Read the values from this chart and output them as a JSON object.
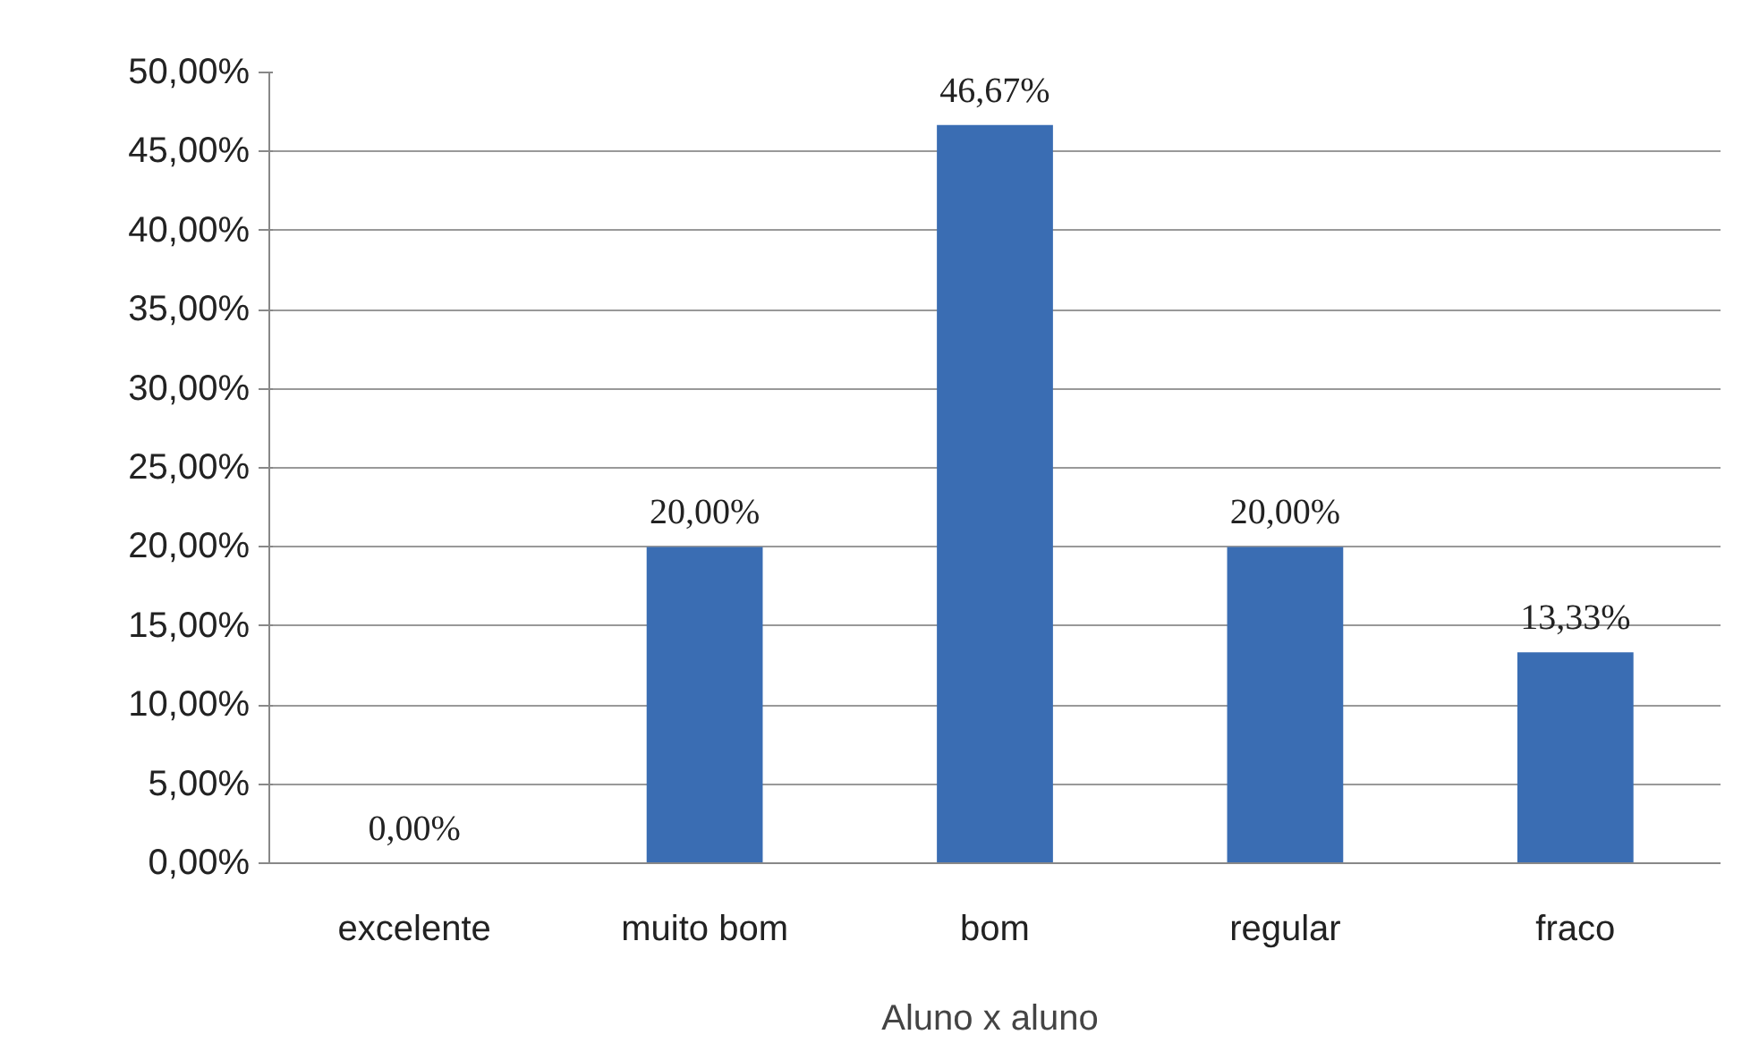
{
  "chart_data": {
    "type": "bar",
    "xlabel": "Aluno x  aluno",
    "categories": [
      "excelente",
      "muito bom",
      "bom",
      "regular",
      "fraco"
    ],
    "values": [
      0,
      20,
      46.67,
      20,
      13.33
    ],
    "value_labels": [
      "0,00%",
      "20,00%",
      "46,67%",
      "20,00%",
      "13,33%"
    ],
    "color": "#3a6db3",
    "ylim": [
      0,
      50
    ],
    "yticks": [
      {
        "value": 0,
        "label": "0,00%"
      },
      {
        "value": 5,
        "label": "5,00%"
      },
      {
        "value": 10,
        "label": "10,00%"
      },
      {
        "value": 15,
        "label": "15,00%"
      },
      {
        "value": 20,
        "label": "20,00%"
      },
      {
        "value": 25,
        "label": "25,00%"
      },
      {
        "value": 30,
        "label": "30,00%"
      },
      {
        "value": 35,
        "label": "35,00%"
      },
      {
        "value": 40,
        "label": "40,00%"
      },
      {
        "value": 45,
        "label": "45,00%"
      },
      {
        "value": 50,
        "label": "50,00%"
      }
    ],
    "grid": "y"
  }
}
